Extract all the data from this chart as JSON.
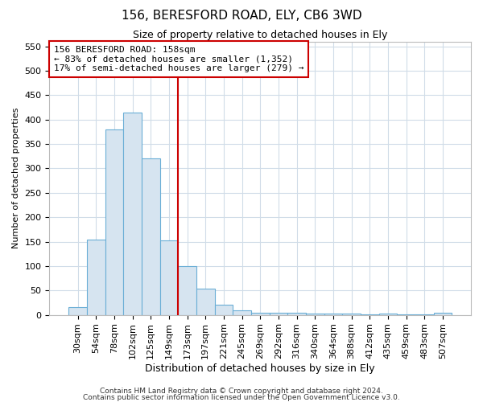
{
  "title1": "156, BERESFORD ROAD, ELY, CB6 3WD",
  "title2": "Size of property relative to detached houses in Ely",
  "xlabel": "Distribution of detached houses by size in Ely",
  "ylabel": "Number of detached properties",
  "footnote1": "Contains HM Land Registry data © Crown copyright and database right 2024.",
  "footnote2": "Contains public sector information licensed under the Open Government Licence v3.0.",
  "bins": [
    "30sqm",
    "54sqm",
    "78sqm",
    "102sqm",
    "125sqm",
    "149sqm",
    "173sqm",
    "197sqm",
    "221sqm",
    "245sqm",
    "269sqm",
    "292sqm",
    "316sqm",
    "340sqm",
    "364sqm",
    "388sqm",
    "412sqm",
    "435sqm",
    "459sqm",
    "483sqm",
    "507sqm"
  ],
  "values": [
    15,
    155,
    380,
    415,
    320,
    153,
    100,
    54,
    20,
    10,
    5,
    4,
    4,
    3,
    2,
    3,
    1,
    3,
    1,
    1,
    4
  ],
  "bar_color": "#d6e4f0",
  "bar_edge_color": "#6aaed6",
  "vline_x": 5.5,
  "annotation_title": "156 BERESFORD ROAD: 158sqm",
  "annotation_line1": "← 83% of detached houses are smaller (1,352)",
  "annotation_line2": "17% of semi-detached houses are larger (279) →",
  "annotation_box_color": "#ffffff",
  "annotation_border_color": "#cc0000",
  "vline_color": "#cc0000",
  "ylim": [
    0,
    560
  ],
  "yticks": [
    0,
    50,
    100,
    150,
    200,
    250,
    300,
    350,
    400,
    450,
    500,
    550
  ],
  "background_color": "#ffffff",
  "grid_color": "#d0dce8",
  "title1_fontsize": 11,
  "title2_fontsize": 9,
  "xlabel_fontsize": 9,
  "ylabel_fontsize": 8,
  "tick_fontsize": 8,
  "footnote_fontsize": 6.5
}
